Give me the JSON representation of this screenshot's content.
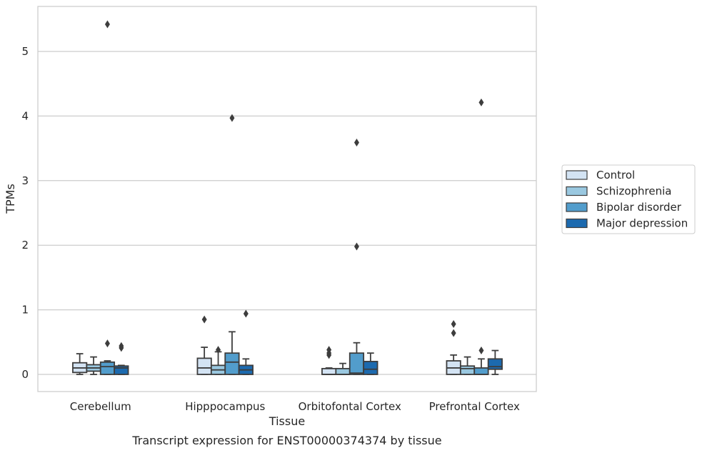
{
  "chart_data": {
    "type": "box",
    "title": "",
    "caption": "Transcript expression for ENST00000374374 by tissue",
    "xlabel": "Tissue",
    "ylabel": "TPMs",
    "ylim": [
      -0.26,
      5.7
    ],
    "yticks": [
      0,
      1,
      2,
      3,
      4,
      5
    ],
    "grid": true,
    "legend_position": "right",
    "categories": [
      "Cerebellum",
      "Hipppocampus",
      "Orbitofontal Cortex",
      "Prefrontal Cortex"
    ],
    "series": [
      {
        "name": "Control",
        "color": "#d3e3f3",
        "boxes": [
          {
            "whisker_low": 0.0,
            "q1": 0.03,
            "median": 0.1,
            "q3": 0.18,
            "whisker_high": 0.32,
            "outliers": []
          },
          {
            "whisker_low": 0.0,
            "q1": 0.0,
            "median": 0.1,
            "q3": 0.25,
            "whisker_high": 0.42,
            "outliers": [
              0.85
            ]
          },
          {
            "whisker_low": 0.0,
            "q1": 0.0,
            "median": 0.0,
            "q3": 0.09,
            "whisker_high": 0.1,
            "outliers": [
              0.3,
              0.33,
              0.38
            ]
          },
          {
            "whisker_low": 0.0,
            "q1": 0.0,
            "median": 0.1,
            "q3": 0.21,
            "whisker_high": 0.3,
            "outliers": [
              0.64,
              0.78
            ]
          }
        ]
      },
      {
        "name": "Schizophrenia",
        "color": "#9ac8e0",
        "boxes": [
          {
            "whisker_low": 0.0,
            "q1": 0.05,
            "median": 0.1,
            "q3": 0.15,
            "whisker_high": 0.27,
            "outliers": []
          },
          {
            "whisker_low": 0.0,
            "q1": 0.0,
            "median": 0.07,
            "q3": 0.14,
            "whisker_high": 0.35,
            "outliers": [
              0.38
            ]
          },
          {
            "whisker_low": 0.0,
            "q1": 0.0,
            "median": 0.0,
            "q3": 0.09,
            "whisker_high": 0.17,
            "outliers": []
          },
          {
            "whisker_low": 0.0,
            "q1": 0.0,
            "median": 0.09,
            "q3": 0.13,
            "whisker_high": 0.27,
            "outliers": []
          }
        ]
      },
      {
        "name": "Bipolar disorder",
        "color": "#529dcc",
        "boxes": [
          {
            "whisker_low": 0.0,
            "q1": 0.0,
            "median": 0.12,
            "q3": 0.19,
            "whisker_high": 0.21,
            "outliers": [
              0.48,
              5.42
            ]
          },
          {
            "whisker_low": 0.0,
            "q1": 0.0,
            "median": 0.19,
            "q3": 0.33,
            "whisker_high": 0.66,
            "outliers": [
              3.97
            ]
          },
          {
            "whisker_low": 0.0,
            "q1": 0.0,
            "median": 0.02,
            "q3": 0.33,
            "whisker_high": 0.49,
            "outliers": [
              1.98,
              3.59
            ]
          },
          {
            "whisker_low": 0.0,
            "q1": 0.0,
            "median": 0.0,
            "q3": 0.1,
            "whisker_high": 0.24,
            "outliers": [
              0.37,
              4.21
            ]
          }
        ]
      },
      {
        "name": "Major depression",
        "color": "#1c6aaf",
        "boxes": [
          {
            "whisker_low": 0.0,
            "q1": 0.0,
            "median": 0.1,
            "q3": 0.13,
            "whisker_high": 0.14,
            "outliers": [
              0.41,
              0.44
            ]
          },
          {
            "whisker_low": 0.0,
            "q1": 0.0,
            "median": 0.07,
            "q3": 0.14,
            "whisker_high": 0.24,
            "outliers": [
              0.94
            ]
          },
          {
            "whisker_low": 0.0,
            "q1": 0.0,
            "median": 0.08,
            "q3": 0.2,
            "whisker_high": 0.33,
            "outliers": []
          },
          {
            "whisker_low": 0.0,
            "q1": 0.08,
            "median": 0.12,
            "q3": 0.24,
            "whisker_high": 0.37,
            "outliers": []
          }
        ]
      }
    ]
  }
}
